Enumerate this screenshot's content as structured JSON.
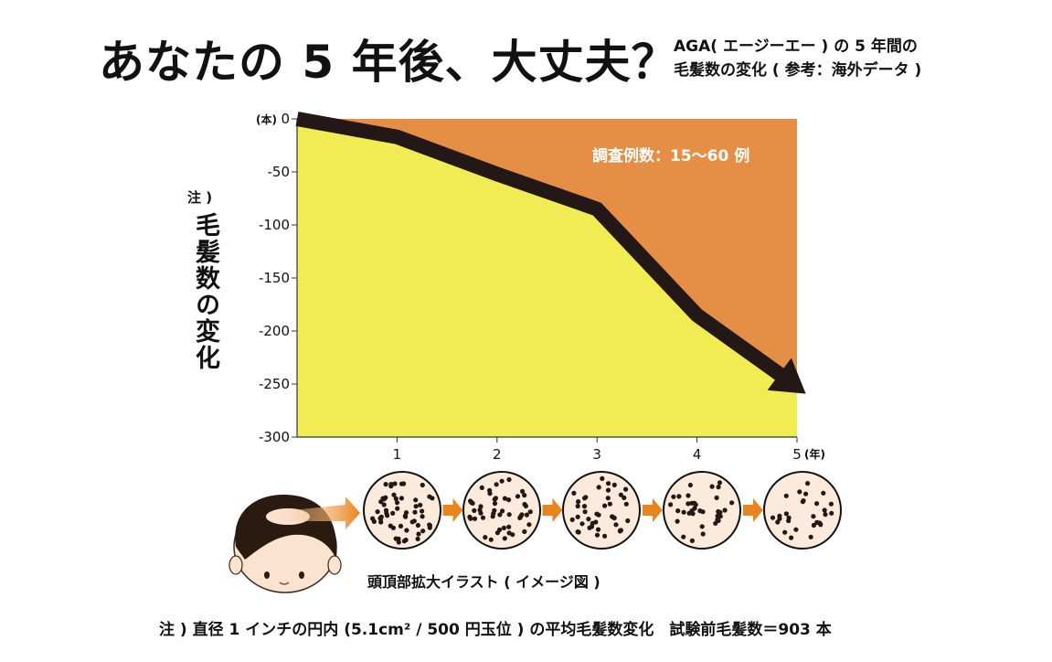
{
  "title": "あなたの 5 年後、大丈夫？",
  "subtitle_line1": "AGA( エージーエー ) の 5 年間の",
  "subtitle_line2": "毛髪数の変化 ( 参考：海外データ )",
  "colors": {
    "above_fill": "#E58E45",
    "below_fill": "#F2EC54",
    "line": "#231815",
    "arrow_orange": "#E9851F"
  },
  "chart_data": {
    "type": "area",
    "x": [
      0,
      1,
      2,
      3,
      4,
      5
    ],
    "values": [
      0,
      -17,
      -52,
      -85,
      -185,
      -255
    ],
    "xlim": [
      0,
      5
    ],
    "ylim": [
      -300,
      0
    ],
    "x_ticks": [
      "1",
      "2",
      "3",
      "4",
      "5"
    ],
    "x_unit": "(年)",
    "y_ticks": [
      "0",
      "-50",
      "-100",
      "-150",
      "-200",
      "-250",
      "-300"
    ],
    "y_unit": "(本)",
    "ylabel_note": "注 )",
    "ylabel": "毛髪数の変化",
    "annotation": "調査例数：15〜60 例",
    "grid": false
  },
  "scalp_illustration": {
    "caption": "頭頂部拡大イラスト ( イメージ図 )",
    "hair_densities": [
      1.0,
      0.85,
      0.72,
      0.6,
      0.5
    ]
  },
  "footnote": "注 ) 直径 1 インチの円内 (5.1cm² / 500 円玉位 ) の平均毛髪数変化　試験前毛髪数＝903 本"
}
